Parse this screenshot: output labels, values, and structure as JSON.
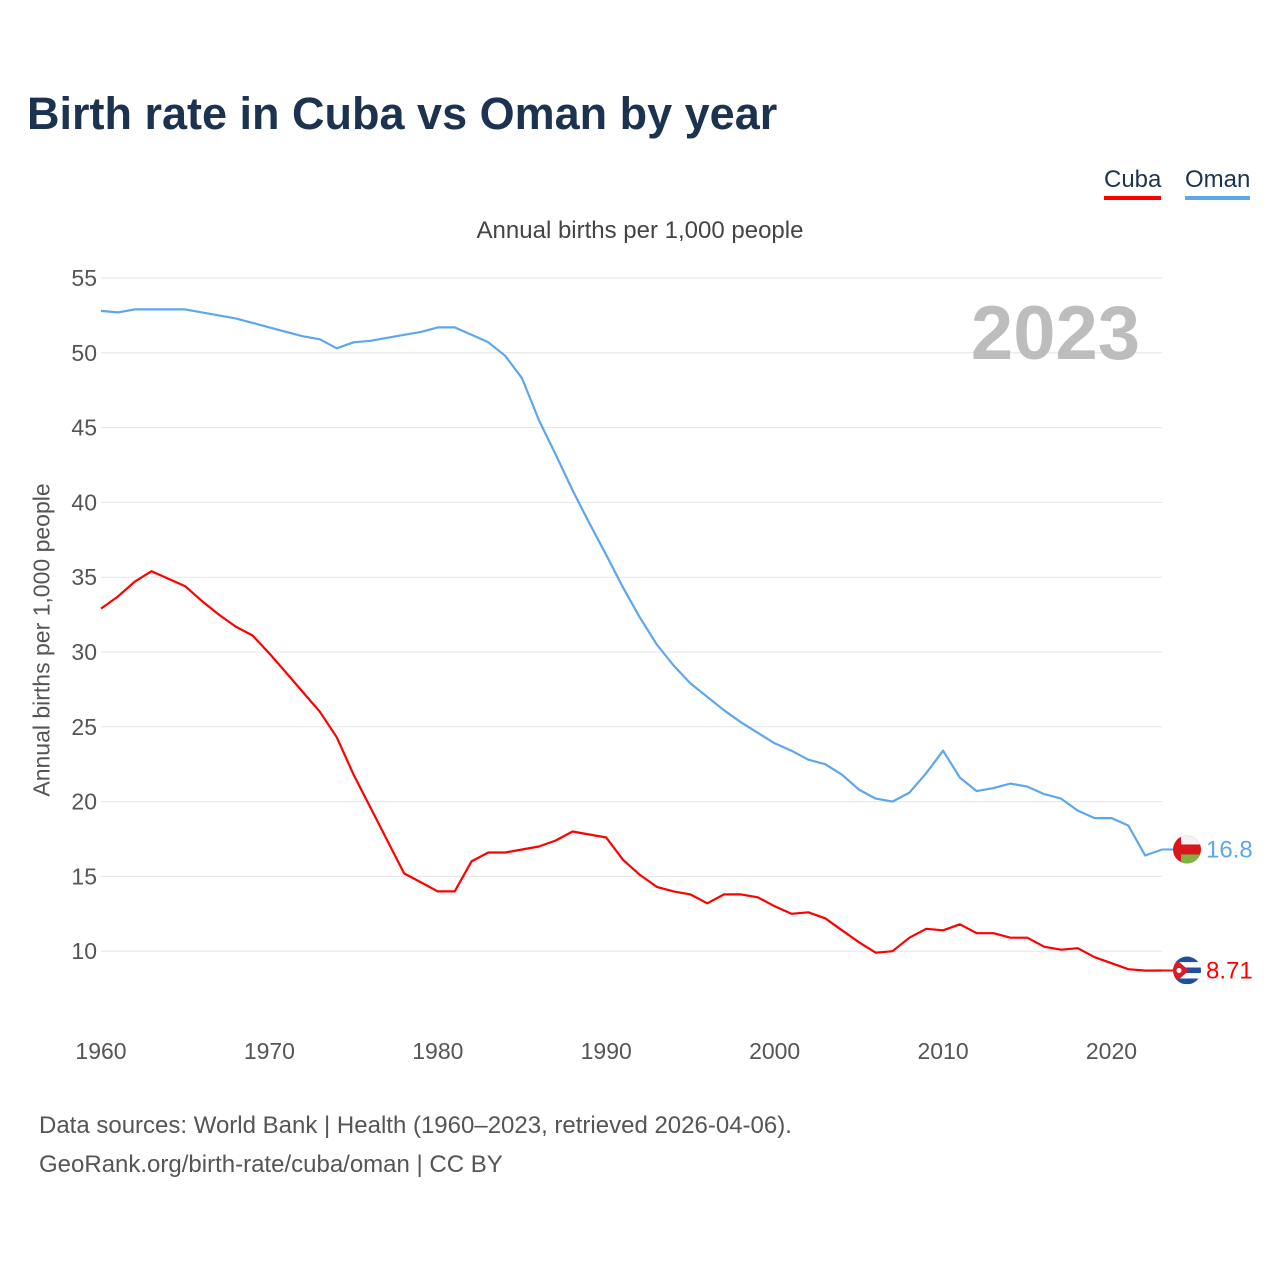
{
  "title": "Birth rate in Cuba vs Oman by year",
  "legend": [
    "Cuba",
    "Oman"
  ],
  "subtitle": "Annual births per 1,000 people",
  "year_label": "2023",
  "source_line1": "Data sources: World Bank | Health (1960–2023, retrieved 2026-04-06).",
  "source_line2": "GeoRank.org/birth-rate/cuba/oman | CC BY",
  "chart_data": {
    "type": "line",
    "title": "Birth rate in Cuba vs Oman by year",
    "xlabel": "",
    "ylabel": "Annual births per 1,000 people",
    "xlim": [
      1960,
      2023
    ],
    "ylim": [
      7,
      55
    ],
    "grid": true,
    "legend_placement": "top-right",
    "x_ticks": [
      1960,
      1970,
      1980,
      1990,
      2000,
      2010,
      2020
    ],
    "y_ticks": [
      10,
      15,
      20,
      25,
      30,
      35,
      40,
      45,
      50,
      55
    ],
    "x_start": 1960,
    "series": [
      {
        "name": "Cuba",
        "color": "#ff0000",
        "end_label": "8.71",
        "flag": "cuba-flag",
        "values": [
          32.9,
          33.7,
          34.7,
          35.4,
          34.9,
          34.4,
          33.4,
          32.5,
          31.7,
          31.1,
          29.9,
          28.6,
          27.3,
          26.0,
          24.3,
          21.8,
          19.6,
          17.4,
          15.2,
          14.6,
          14.0,
          14.0,
          16.0,
          16.6,
          16.6,
          16.8,
          17.0,
          17.4,
          18.0,
          17.8,
          17.6,
          16.1,
          15.1,
          14.3,
          14.0,
          13.8,
          13.2,
          13.8,
          13.8,
          13.6,
          13.0,
          12.5,
          12.6,
          12.2,
          11.4,
          10.6,
          9.9,
          10.0,
          10.9,
          11.5,
          11.4,
          11.8,
          11.2,
          11.2,
          10.9,
          10.9,
          10.3,
          10.1,
          10.2,
          9.6,
          9.2,
          8.8,
          8.7,
          8.71
        ]
      },
      {
        "name": "Oman",
        "color": "#5da7ec",
        "end_label": "16.8",
        "flag": "oman-flag",
        "values": [
          52.8,
          52.7,
          52.9,
          52.9,
          52.9,
          52.9,
          52.7,
          52.5,
          52.3,
          52.0,
          51.7,
          51.4,
          51.1,
          50.9,
          50.3,
          50.7,
          50.8,
          51.0,
          51.2,
          51.4,
          51.7,
          51.7,
          51.2,
          50.7,
          49.8,
          48.3,
          45.5,
          43.2,
          40.8,
          38.6,
          36.5,
          34.3,
          32.3,
          30.5,
          29.1,
          27.9,
          27.0,
          26.1,
          25.3,
          24.6,
          23.9,
          23.4,
          22.8,
          22.5,
          21.8,
          20.8,
          20.2,
          20.0,
          20.6,
          21.9,
          23.4,
          21.6,
          20.7,
          20.9,
          21.2,
          21.0,
          20.5,
          20.2,
          19.4,
          18.9,
          18.9,
          18.4,
          16.4,
          16.8
        ]
      }
    ]
  }
}
